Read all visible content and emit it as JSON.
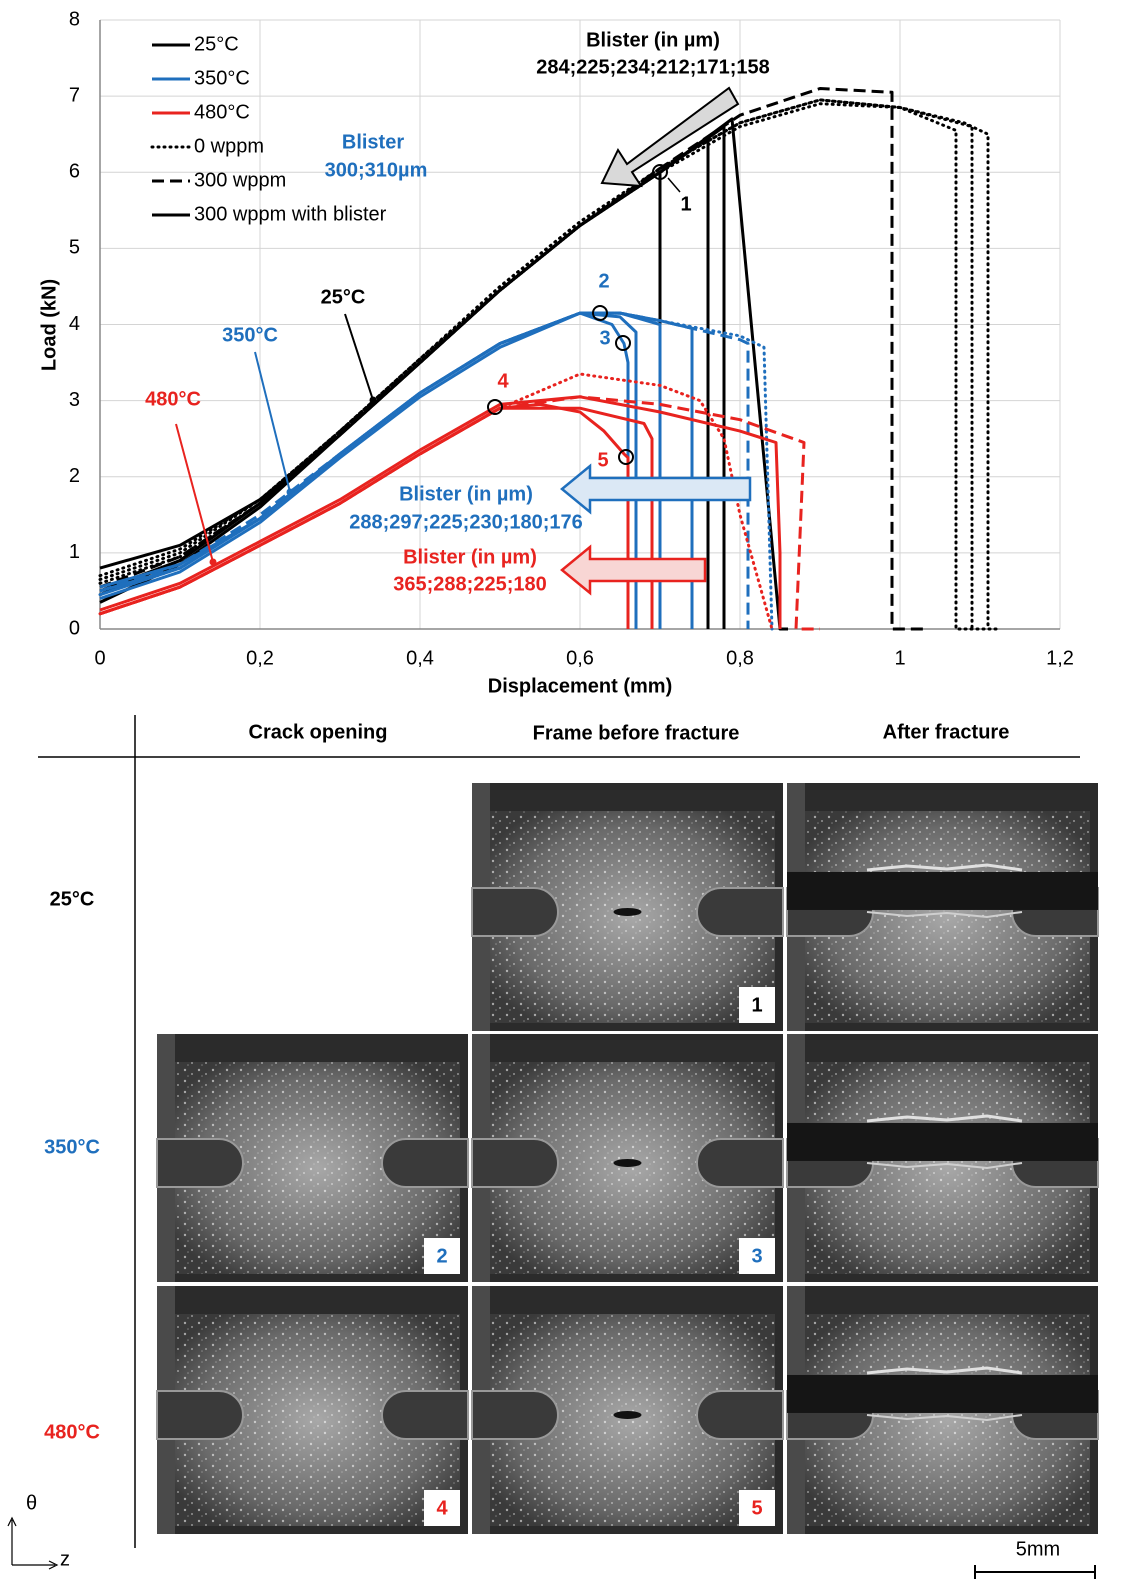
{
  "chart_data": {
    "type": "line",
    "x_label": "Displacement (mm)",
    "y_label": "Load (kN)",
    "xlim": [
      0,
      1.2
    ],
    "ylim": [
      0,
      8
    ],
    "xticks": [
      0,
      {
        "value": 0.2,
        "label": "0,2"
      },
      {
        "value": 0.4,
        "label": "0,4"
      },
      {
        "value": 0.6,
        "label": "0,6"
      },
      {
        "value": 0.8,
        "label": "0,8"
      },
      1,
      {
        "value": 1.2,
        "label": "1,2"
      }
    ],
    "yticks": [
      0,
      1,
      2,
      3,
      4,
      5,
      6,
      7,
      8
    ],
    "grid": true,
    "legend_colors": [
      {
        "name": "25°C",
        "color": "#000000"
      },
      {
        "name": "350°C",
        "color": "#1f6fbd"
      },
      {
        "name": "480°C",
        "color": "#e8231f"
      }
    ],
    "legend_styles": [
      {
        "name": "0 wppm",
        "dash": "dotted"
      },
      {
        "name": "300 wppm",
        "dash": "dashed"
      },
      {
        "name": "300 wppm with blister",
        "dash": "solid"
      }
    ],
    "annotations": [
      "Blister (in µm)",
      "284;225;234;212;171;158",
      "Blister",
      "300;310µm",
      "25°C",
      "350°C",
      "480°C",
      "1",
      "2",
      "3",
      "4",
      "5",
      "Blister (in µm)",
      "288;297;225;230;180;176",
      "Blister (in µm)",
      "365;288;225;180"
    ],
    "series": [
      {
        "color": "#000000",
        "dash": "dotted",
        "x": [
          0,
          0.1,
          0.2,
          0.3,
          0.4,
          0.5,
          0.6,
          0.7,
          0.8,
          0.9,
          1.0,
          1.07,
          1.07,
          1.12
        ],
        "values": [
          0.6,
          0.95,
          1.65,
          2.55,
          3.5,
          4.45,
          5.3,
          6.0,
          6.6,
          6.9,
          6.85,
          6.55,
          0,
          0
        ]
      },
      {
        "color": "#000000",
        "dash": "dotted",
        "x": [
          0,
          0.1,
          0.2,
          0.3,
          0.4,
          0.5,
          0.6,
          0.7,
          0.8,
          0.9,
          1.0,
          1.09,
          1.09
        ],
        "values": [
          0.65,
          1.0,
          1.7,
          2.6,
          3.55,
          4.45,
          5.3,
          6.05,
          6.65,
          6.95,
          6.85,
          6.6,
          0
        ]
      },
      {
        "color": "#000000",
        "dash": "dotted",
        "x": [
          0,
          0.1,
          0.2,
          0.3,
          0.4,
          0.5,
          0.6,
          0.7,
          0.8,
          0.9,
          1.0,
          1.08,
          1.11,
          1.11
        ],
        "values": [
          0.7,
          1.05,
          1.7,
          2.6,
          3.55,
          4.5,
          5.35,
          6.05,
          6.65,
          6.95,
          6.85,
          6.65,
          6.5,
          0
        ]
      },
      {
        "color": "#000000",
        "dash": "dashed",
        "x": [
          0,
          0.1,
          0.2,
          0.3,
          0.4,
          0.5,
          0.6,
          0.7,
          0.8,
          0.9,
          0.99,
          0.99,
          1.03
        ],
        "values": [
          0.55,
          0.95,
          1.65,
          2.6,
          3.5,
          4.45,
          5.3,
          6.05,
          6.75,
          7.1,
          7.05,
          0,
          0
        ]
      },
      {
        "color": "#000000",
        "dash": "solid",
        "x": [
          0,
          0.1,
          0.2,
          0.3,
          0.4,
          0.5,
          0.6,
          0.7,
          0.7
        ],
        "values": [
          0.5,
          0.9,
          1.65,
          2.55,
          3.5,
          4.45,
          5.3,
          6.0,
          0
        ]
      },
      {
        "color": "#000000",
        "dash": "solid",
        "x": [
          0,
          0.1,
          0.2,
          0.3,
          0.4,
          0.5,
          0.6,
          0.7,
          0.76,
          0.76
        ],
        "values": [
          0.8,
          1.1,
          1.7,
          2.55,
          3.5,
          4.45,
          5.3,
          6.0,
          6.45,
          0
        ]
      },
      {
        "color": "#000000",
        "dash": "solid",
        "x": [
          0,
          0.1,
          0.2,
          0.3,
          0.4,
          0.5,
          0.6,
          0.7,
          0.78,
          0.78
        ],
        "values": [
          0.35,
          0.85,
          1.6,
          2.55,
          3.5,
          4.45,
          5.3,
          6.0,
          6.6,
          0
        ]
      },
      {
        "color": "#000000",
        "dash": "solid",
        "x": [
          0,
          0.1,
          0.2,
          0.3,
          0.4,
          0.5,
          0.6,
          0.7,
          0.79,
          0.85,
          0.86
        ],
        "values": [
          0.45,
          0.9,
          1.65,
          2.55,
          3.5,
          4.45,
          5.3,
          6.0,
          6.7,
          0,
          0
        ]
      },
      {
        "color": "#1f6fbd",
        "dash": "dotted",
        "x": [
          0,
          0.1,
          0.2,
          0.3,
          0.4,
          0.5,
          0.6,
          0.65,
          0.7,
          0.8,
          0.83,
          0.84
        ],
        "values": [
          0.45,
          0.8,
          1.45,
          2.3,
          3.1,
          3.75,
          4.15,
          4.15,
          4.05,
          3.85,
          3.7,
          0
        ]
      },
      {
        "color": "#1f6fbd",
        "dash": "dashed",
        "x": [
          0,
          0.1,
          0.2,
          0.3,
          0.4,
          0.5,
          0.6,
          0.65,
          0.7,
          0.8,
          0.81,
          0.81
        ],
        "values": [
          0.5,
          0.85,
          1.5,
          2.3,
          3.1,
          3.75,
          4.15,
          4.15,
          4.05,
          3.8,
          3.75,
          0
        ]
      },
      {
        "color": "#1f6fbd",
        "dash": "solid",
        "x": [
          0,
          0.1,
          0.2,
          0.3,
          0.4,
          0.5,
          0.6,
          0.64,
          0.655,
          0.66,
          0.66
        ],
        "values": [
          0.4,
          0.75,
          1.4,
          2.25,
          3.05,
          3.7,
          4.15,
          4.0,
          3.75,
          3.5,
          0
        ]
      },
      {
        "color": "#1f6fbd",
        "dash": "solid",
        "x": [
          0,
          0.1,
          0.2,
          0.3,
          0.4,
          0.5,
          0.6,
          0.65,
          0.67,
          0.67
        ],
        "values": [
          0.55,
          0.85,
          1.45,
          2.3,
          3.1,
          3.75,
          4.15,
          4.1,
          3.9,
          0
        ]
      },
      {
        "color": "#1f6fbd",
        "dash": "solid",
        "x": [
          0,
          0.1,
          0.2,
          0.3,
          0.4,
          0.5,
          0.6,
          0.65,
          0.7,
          0.7
        ],
        "values": [
          0.45,
          0.8,
          1.45,
          2.3,
          3.1,
          3.75,
          4.15,
          4.15,
          4.0,
          0
        ]
      },
      {
        "color": "#1f6fbd",
        "dash": "solid",
        "x": [
          0,
          0.1,
          0.2,
          0.3,
          0.4,
          0.5,
          0.6,
          0.65,
          0.7,
          0.74,
          0.74
        ],
        "values": [
          0.5,
          0.8,
          1.45,
          2.3,
          3.1,
          3.75,
          4.15,
          4.15,
          4.05,
          3.95,
          0
        ]
      },
      {
        "color": "#e8231f",
        "dash": "dotted",
        "x": [
          0,
          0.1,
          0.2,
          0.3,
          0.4,
          0.5,
          0.6,
          0.7,
          0.75,
          0.78,
          0.8,
          0.84
        ],
        "values": [
          0.2,
          0.55,
          1.1,
          1.65,
          2.3,
          2.9,
          3.35,
          3.2,
          3.0,
          2.5,
          1.5,
          0
        ]
      },
      {
        "color": "#e8231f",
        "dash": "dashed",
        "x": [
          0,
          0.1,
          0.2,
          0.3,
          0.4,
          0.5,
          0.6,
          0.7,
          0.8,
          0.88,
          0.87,
          0.9
        ],
        "values": [
          0.2,
          0.55,
          1.1,
          1.65,
          2.3,
          2.9,
          3.05,
          2.95,
          2.75,
          2.45,
          0,
          0
        ]
      },
      {
        "color": "#e8231f",
        "dash": "solid",
        "x": [
          0,
          0.1,
          0.2,
          0.3,
          0.4,
          0.5,
          0.55,
          0.6,
          0.63,
          0.655,
          0.66,
          0.66
        ],
        "values": [
          0.2,
          0.55,
          1.1,
          1.65,
          2.3,
          2.9,
          2.95,
          2.85,
          2.6,
          2.3,
          2.25,
          0
        ]
      },
      {
        "color": "#e8231f",
        "dash": "solid",
        "x": [
          0,
          0.1,
          0.2,
          0.3,
          0.4,
          0.5,
          0.6,
          0.7,
          0.8,
          0.845,
          0.85,
          0.85
        ],
        "values": [
          0.25,
          0.6,
          1.15,
          1.7,
          2.35,
          2.95,
          3.05,
          2.85,
          2.6,
          2.45,
          1.0,
          0
        ]
      },
      {
        "color": "#e8231f",
        "dash": "solid",
        "x": [
          0,
          0.1,
          0.2,
          0.3,
          0.4,
          0.5,
          0.6,
          0.68,
          0.69,
          0.69
        ],
        "values": [
          0.2,
          0.55,
          1.1,
          1.65,
          2.3,
          2.9,
          2.9,
          2.7,
          2.5,
          0
        ]
      }
    ]
  },
  "figure_panels": {
    "columns": [
      "Crack opening",
      "Frame before fracture",
      "After fracture"
    ],
    "rows": [
      {
        "label": "25°C",
        "color": "#000000"
      },
      {
        "label": "350°C",
        "color": "#1f6fbd"
      },
      {
        "label": "480°C",
        "color": "#e8231f"
      }
    ],
    "frame_numbers": [
      "1",
      "2",
      "3",
      "4",
      "5"
    ],
    "axis_theta": "θ",
    "axis_z": "z",
    "scale_bar": "5mm"
  }
}
